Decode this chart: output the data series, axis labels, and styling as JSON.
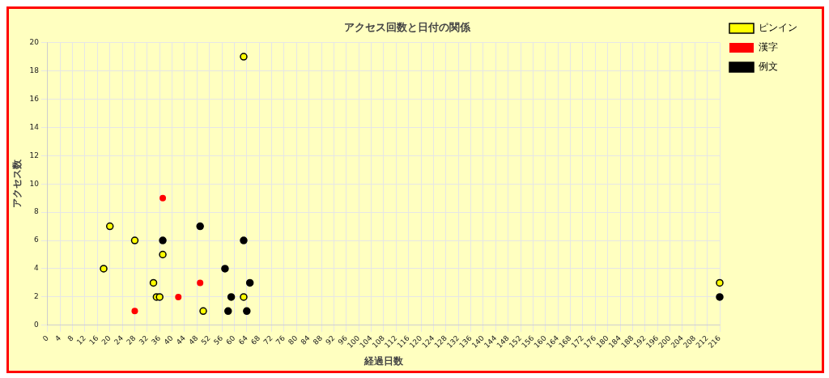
{
  "chart_data": {
    "type": "scatter",
    "title": "アクセス回数と日付の関係",
    "xlabel": "経過日数",
    "ylabel": "アクセス数",
    "xlim": [
      0,
      216
    ],
    "xticks": [
      0,
      4,
      8,
      12,
      16,
      20,
      24,
      28,
      32,
      36,
      40,
      44,
      48,
      52,
      56,
      60,
      64,
      68,
      72,
      76,
      80,
      84,
      88,
      92,
      96,
      100,
      104,
      108,
      112,
      116,
      120,
      124,
      128,
      132,
      136,
      140,
      144,
      148,
      152,
      156,
      160,
      164,
      168,
      172,
      176,
      180,
      184,
      188,
      192,
      196,
      200,
      204,
      208,
      212,
      216
    ],
    "ylim": [
      0,
      20
    ],
    "yticks": [
      0,
      2,
      4,
      6,
      8,
      10,
      12,
      14,
      16,
      18,
      20
    ],
    "grid": true,
    "legend": "top right",
    "marker": "circle",
    "series": [
      {
        "name": "ピンイン",
        "color": "#ffff00",
        "x": [
          63,
          20,
          28,
          18,
          37,
          34,
          35,
          36,
          50,
          63,
          216
        ],
        "values": [
          19,
          7,
          6,
          4,
          5,
          3,
          2,
          2,
          1,
          2,
          3
        ]
      },
      {
        "name": "漢字",
        "color": "#ff0000",
        "x": [
          37,
          28,
          42,
          49
        ],
        "values": [
          9,
          1,
          2,
          3
        ]
      },
      {
        "name": "例文",
        "color": "#000000",
        "x": [
          37,
          49,
          63,
          57,
          65,
          59,
          58,
          64,
          216
        ],
        "values": [
          6,
          7,
          6,
          4,
          3,
          2,
          1,
          1,
          2
        ]
      }
    ]
  }
}
